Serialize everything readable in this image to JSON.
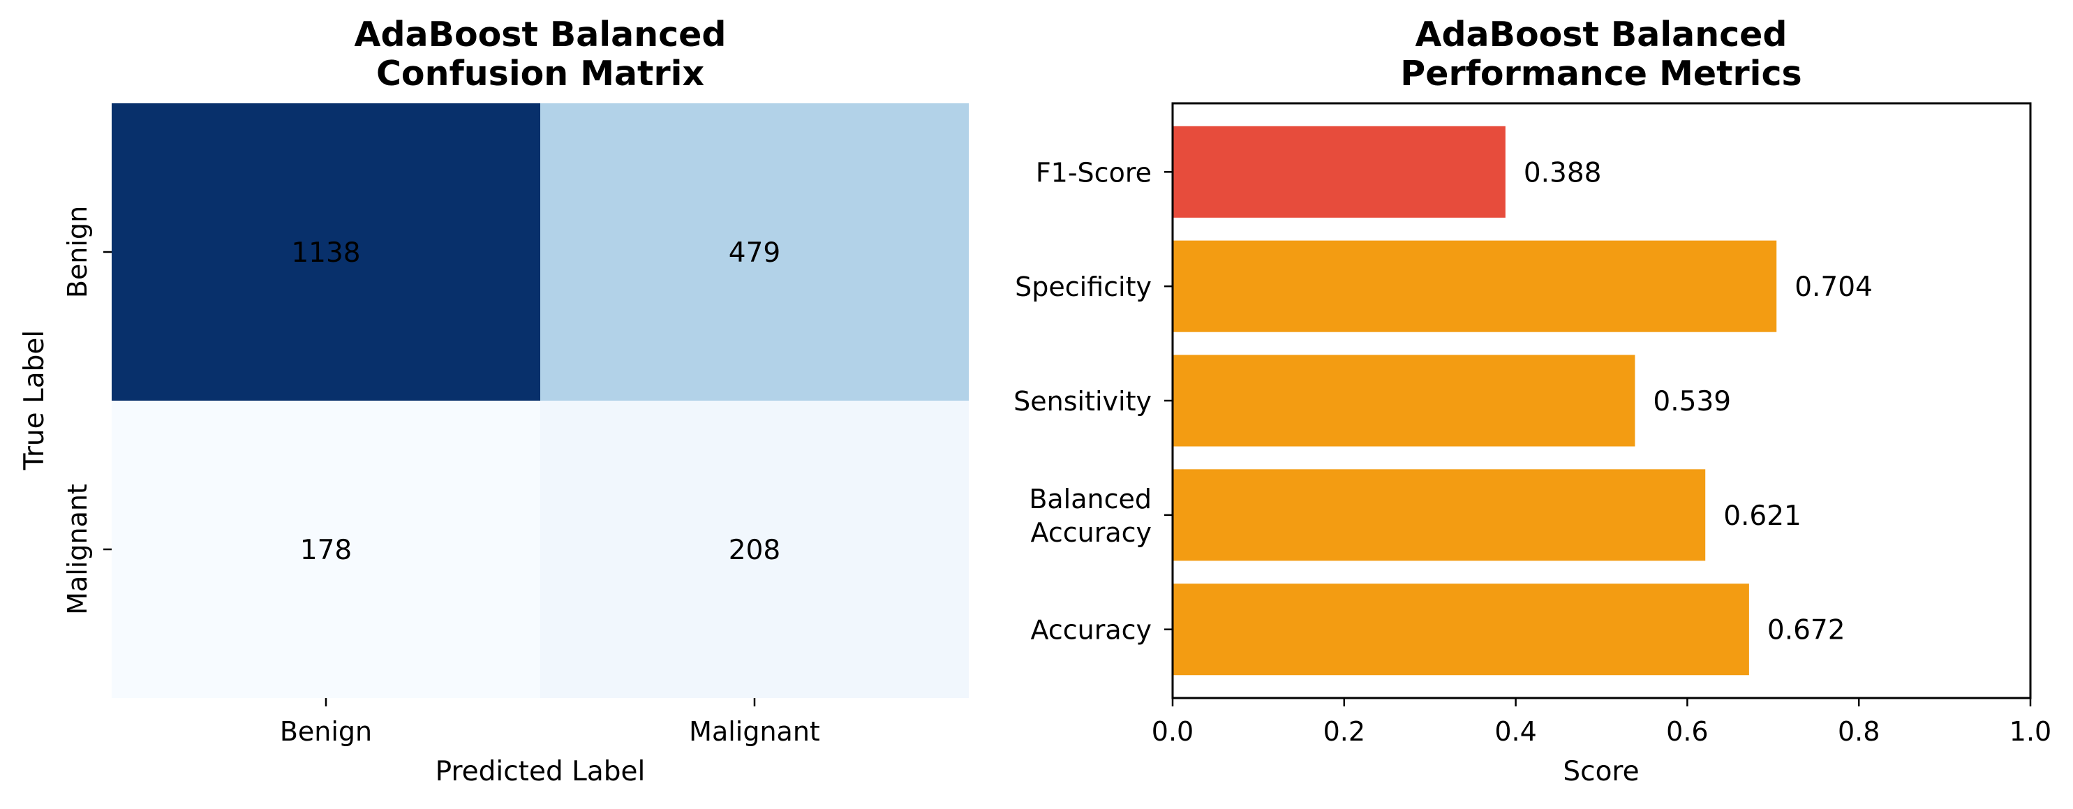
{
  "chart_data": [
    {
      "type": "heatmap",
      "title_lines": [
        "AdaBoost Balanced",
        "Confusion Matrix"
      ],
      "xlabel": "Predicted Label",
      "ylabel": "True Label",
      "x_categories": [
        "Benign",
        "Malignant"
      ],
      "y_categories": [
        "Benign",
        "Malignant"
      ],
      "values": [
        [
          1138,
          479
        ],
        [
          178,
          208
        ]
      ],
      "colormap": "Blues",
      "colorbar": false
    },
    {
      "type": "bar",
      "orientation": "horizontal",
      "title_lines": [
        "AdaBoost Balanced",
        "Performance Metrics"
      ],
      "xlabel": "Score",
      "ylabel": "",
      "categories": [
        {
          "lines": [
            "Accuracy"
          ]
        },
        {
          "lines": [
            "Balanced",
            "Accuracy"
          ]
        },
        {
          "lines": [
            "Sensitivity"
          ]
        },
        {
          "lines": [
            "Specificity"
          ]
        },
        {
          "lines": [
            "F1-Score"
          ]
        }
      ],
      "values": [
        0.672,
        0.621,
        0.539,
        0.704,
        0.388
      ],
      "value_labels": [
        "0.672",
        "0.621",
        "0.539",
        "0.704",
        "0.388"
      ],
      "colors": [
        "#f39c12",
        "#f39c12",
        "#f39c12",
        "#f39c12",
        "#e74c3c"
      ],
      "xlim": [
        0,
        1.0
      ],
      "xticks": [
        "0.0",
        "0.2",
        "0.4",
        "0.6",
        "0.8",
        "1.0"
      ],
      "grid": false
    }
  ]
}
